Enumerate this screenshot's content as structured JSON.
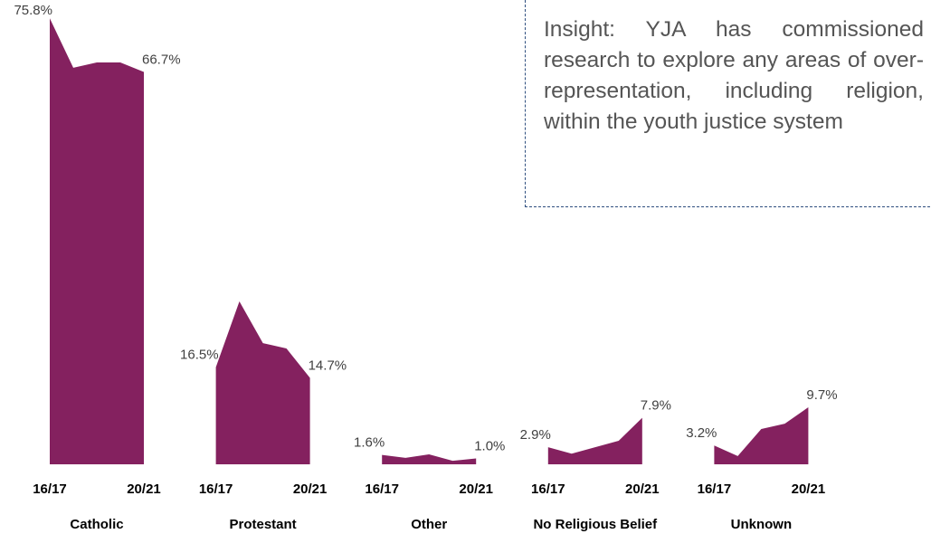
{
  "chart_data": [
    {
      "type": "area",
      "title": "Catholic",
      "categories": [
        "16/17",
        null,
        null,
        null,
        "20/21"
      ],
      "values": [
        75.8,
        67.4,
        68.3,
        68.3,
        66.7
      ],
      "value_labels": [
        "75.8%",
        null,
        null,
        null,
        "66.7%"
      ],
      "color": "#84215f",
      "ylim": [
        0,
        80
      ]
    },
    {
      "type": "area",
      "title": "Protestant",
      "categories": [
        "16/17",
        null,
        null,
        null,
        "20/21"
      ],
      "values": [
        16.5,
        27.7,
        20.6,
        19.7,
        14.7
      ],
      "value_labels": [
        "16.5%",
        null,
        null,
        null,
        "14.7%"
      ],
      "color": "#84215f",
      "ylim": [
        0,
        80
      ]
    },
    {
      "type": "area",
      "title": "Other",
      "categories": [
        "16/17",
        null,
        null,
        null,
        "20/21"
      ],
      "values": [
        1.6,
        1.1,
        1.7,
        0.6,
        1.0
      ],
      "value_labels": [
        "1.6%",
        null,
        null,
        null,
        "1.0%"
      ],
      "color": "#84215f",
      "ylim": [
        0,
        80
      ]
    },
    {
      "type": "area",
      "title": "No Religious Belief",
      "categories": [
        "16/17",
        null,
        null,
        null,
        "20/21"
      ],
      "values": [
        2.9,
        1.8,
        2.9,
        4.0,
        7.9
      ],
      "value_labels": [
        "2.9%",
        null,
        null,
        null,
        "7.9%"
      ],
      "color": "#84215f",
      "ylim": [
        0,
        80
      ]
    },
    {
      "type": "area",
      "title": "Unknown",
      "categories": [
        "16/17",
        null,
        null,
        null,
        "20/21"
      ],
      "values": [
        3.2,
        1.4,
        6.0,
        6.9,
        9.7
      ],
      "value_labels": [
        "3.2%",
        null,
        null,
        null,
        "9.7%"
      ],
      "color": "#84215f",
      "ylim": [
        0,
        80
      ]
    }
  ],
  "insight": "Insight: YJA has commissioned research to explore any areas of over-representation, including religion, within the youth justice system"
}
